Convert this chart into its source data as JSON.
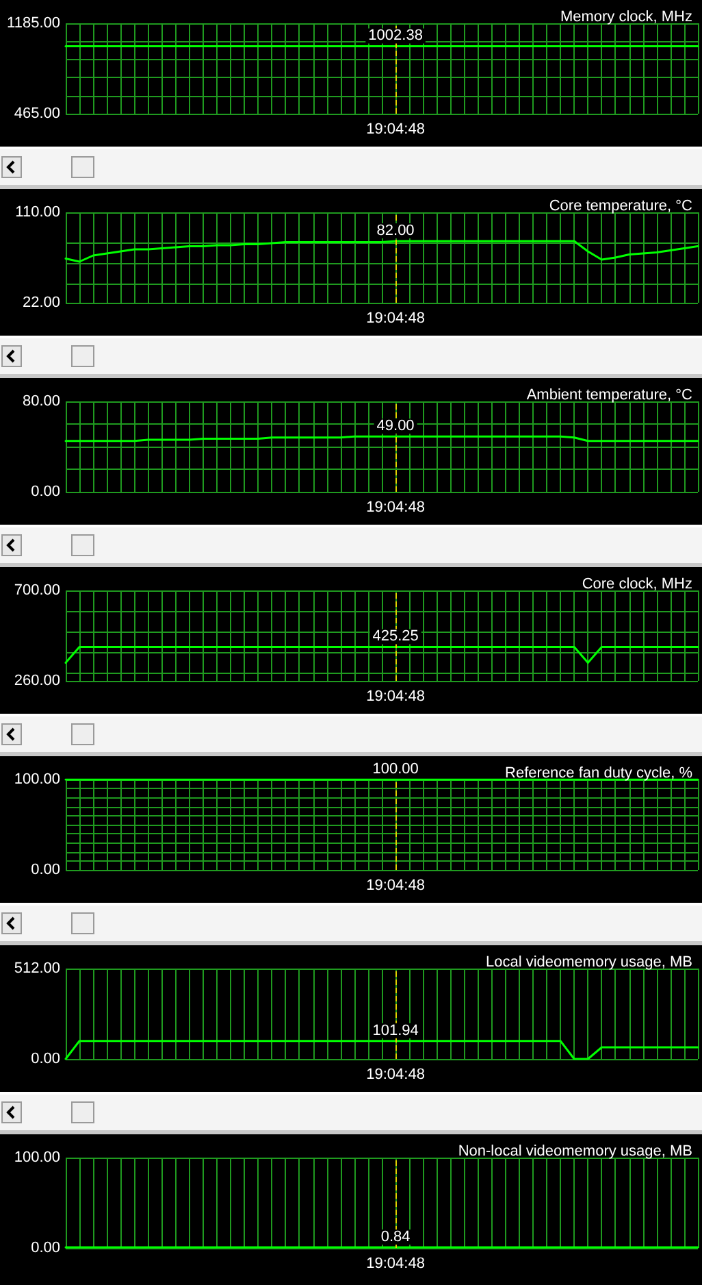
{
  "chart_data": [
    {
      "type": "line",
      "title": "Memory clock, MHz",
      "color": "#00ff00",
      "grid": true,
      "marker": "none",
      "categories": [
        null,
        null,
        null,
        null,
        null,
        null,
        null,
        null,
        null,
        null,
        null,
        null,
        null,
        null,
        null,
        null,
        null,
        null,
        null,
        null,
        null,
        null,
        null,
        null,
        "19:04:48",
        null,
        null,
        null,
        null,
        null,
        null,
        null,
        null,
        null,
        null,
        null,
        null,
        null,
        null,
        null,
        null,
        null,
        null,
        null,
        null,
        null,
        null
      ],
      "values": [
        1002.38,
        1002.38,
        1002.38,
        1002.38,
        1002.38,
        1002.38,
        1002.38,
        1002.38,
        1002.38,
        1002.38,
        1002.38,
        1002.38,
        1002.38,
        1002.38,
        1002.38,
        1002.38,
        1002.38,
        1002.38,
        1002.38,
        1002.38,
        1002.38,
        1002.38,
        1002.38,
        1002.38,
        1002.38,
        1002.38,
        1002.38,
        1002.38,
        1002.38,
        1002.38,
        1002.38,
        1002.38,
        1002.38,
        1002.38,
        1002.38,
        1002.38,
        1002.38,
        1002.38,
        1002.38,
        1002.38,
        1002.38,
        1002.38,
        1002.38,
        1002.38,
        1002.38,
        1002.38,
        1002.38
      ],
      "ylim": [
        465,
        1185
      ],
      "yticks": [
        {
          "value": 465,
          "label": "465.00"
        },
        {
          "value": 609,
          "label": null
        },
        {
          "value": 753,
          "label": null
        },
        {
          "value": 897,
          "label": null
        },
        {
          "value": 1041,
          "label": null
        },
        {
          "value": 1185,
          "label": "1185.00"
        }
      ],
      "ref_lines": [
        {
          "axis": "x",
          "value": "19:04:48",
          "color": "#e0d000",
          "line_style": "dashed"
        }
      ],
      "annotations": [
        {
          "text": "1002.38",
          "x": "19:04:48",
          "y": 1002.38
        }
      ]
    },
    {
      "type": "line",
      "title": "Core temperature, °C",
      "color": "#00ff00",
      "grid": true,
      "marker": "none",
      "categories": [
        null,
        null,
        null,
        null,
        null,
        null,
        null,
        null,
        null,
        null,
        null,
        null,
        null,
        null,
        null,
        null,
        null,
        null,
        null,
        null,
        null,
        null,
        null,
        null,
        "19:04:48",
        null,
        null,
        null,
        null,
        null,
        null,
        null,
        null,
        null,
        null,
        null,
        null,
        null,
        null,
        null,
        null,
        null,
        null,
        null,
        null,
        null,
        null
      ],
      "values": [
        65,
        62,
        68,
        70,
        72,
        74,
        74,
        75,
        76,
        77,
        77,
        78,
        78,
        79,
        79,
        80,
        81,
        81,
        81,
        81,
        81,
        81,
        81,
        81,
        82,
        82,
        82,
        82,
        82,
        82,
        82,
        82,
        82,
        82,
        82,
        82,
        82,
        82,
        72,
        64,
        66,
        69,
        70,
        71,
        73,
        75,
        77
      ],
      "ylim": [
        22,
        110
      ],
      "yticks": [
        {
          "value": 22,
          "label": "22.00"
        },
        {
          "value": 40,
          "label": null
        },
        {
          "value": 60,
          "label": null
        },
        {
          "value": 80,
          "label": null
        },
        {
          "value": 110,
          "label": "110.00"
        }
      ],
      "ref_lines": [
        {
          "axis": "x",
          "value": "19:04:48",
          "color": "#e0d000",
          "line_style": "dashed"
        }
      ],
      "annotations": [
        {
          "text": "82.00",
          "x": "19:04:48",
          "y": 82
        }
      ]
    },
    {
      "type": "line",
      "title": "Ambient temperature, °C",
      "color": "#00ff00",
      "grid": true,
      "marker": "none",
      "categories": [
        null,
        null,
        null,
        null,
        null,
        null,
        null,
        null,
        null,
        null,
        null,
        null,
        null,
        null,
        null,
        null,
        null,
        null,
        null,
        null,
        null,
        null,
        null,
        null,
        "19:04:48",
        null,
        null,
        null,
        null,
        null,
        null,
        null,
        null,
        null,
        null,
        null,
        null,
        null,
        null,
        null,
        null,
        null,
        null,
        null,
        null,
        null,
        null
      ],
      "values": [
        45,
        45,
        45,
        45,
        45,
        45,
        46,
        46,
        46,
        46,
        47,
        47,
        47,
        47,
        47,
        48,
        48,
        48,
        48,
        48,
        48,
        49,
        49,
        49,
        49,
        49,
        49,
        49,
        49,
        49,
        49,
        49,
        49,
        49,
        49,
        49,
        49,
        48,
        45,
        45,
        45,
        45,
        45,
        45,
        45,
        45,
        45
      ],
      "ylim": [
        0,
        80
      ],
      "yticks": [
        {
          "value": 0,
          "label": "0.00"
        },
        {
          "value": 20,
          "label": null
        },
        {
          "value": 40,
          "label": null
        },
        {
          "value": 60,
          "label": null
        },
        {
          "value": 80,
          "label": "80.00"
        }
      ],
      "ref_lines": [
        {
          "axis": "x",
          "value": "19:04:48",
          "color": "#e0d000",
          "line_style": "dashed"
        }
      ],
      "annotations": [
        {
          "text": "49.00",
          "x": "19:04:48",
          "y": 49
        }
      ]
    },
    {
      "type": "line",
      "title": "Core clock, MHz",
      "color": "#00ff00",
      "grid": true,
      "marker": "none",
      "categories": [
        null,
        null,
        null,
        null,
        null,
        null,
        null,
        null,
        null,
        null,
        null,
        null,
        null,
        null,
        null,
        null,
        null,
        null,
        null,
        null,
        null,
        null,
        null,
        null,
        "19:04:48",
        null,
        null,
        null,
        null,
        null,
        null,
        null,
        null,
        null,
        null,
        null,
        null,
        null,
        null,
        null,
        null,
        null,
        null,
        null,
        null,
        null,
        null
      ],
      "values": [
        348,
        425.25,
        425.25,
        425.25,
        425.25,
        425.25,
        425.25,
        425.25,
        425.25,
        425.25,
        425.25,
        425.25,
        425.25,
        425.25,
        425.25,
        425.25,
        425.25,
        425.25,
        425.25,
        425.25,
        425.25,
        425.25,
        425.25,
        425.25,
        425.25,
        425.25,
        425.25,
        425.25,
        425.25,
        425.25,
        425.25,
        425.25,
        425.25,
        425.25,
        425.25,
        425.25,
        425.25,
        425.25,
        348,
        425.25,
        425.25,
        425.25,
        425.25,
        425.25,
        425.25,
        425.25,
        425.25
      ],
      "ylim": [
        260,
        700
      ],
      "yticks": [
        {
          "value": 260,
          "label": "260.00"
        },
        {
          "value": 300,
          "label": null
        },
        {
          "value": 400,
          "label": null
        },
        {
          "value": 500,
          "label": null
        },
        {
          "value": 600,
          "label": null
        },
        {
          "value": 700,
          "label": "700.00"
        }
      ],
      "ref_lines": [
        {
          "axis": "x",
          "value": "19:04:48",
          "color": "#e0d000",
          "line_style": "dashed"
        }
      ],
      "annotations": [
        {
          "text": "425.25",
          "x": "19:04:48",
          "y": 425.25
        }
      ]
    },
    {
      "type": "line",
      "title": "Reference fan duty cycle, %",
      "color": "#00ff00",
      "grid": true,
      "marker": "none",
      "categories": [
        null,
        null,
        null,
        null,
        null,
        null,
        null,
        null,
        null,
        null,
        null,
        null,
        null,
        null,
        null,
        null,
        null,
        null,
        null,
        null,
        null,
        null,
        null,
        null,
        "19:04:48",
        null,
        null,
        null,
        null,
        null,
        null,
        null,
        null,
        null,
        null,
        null,
        null,
        null,
        null,
        null,
        null,
        null,
        null,
        null,
        null,
        null,
        null
      ],
      "values": [
        100,
        100,
        100,
        100,
        100,
        100,
        100,
        100,
        100,
        100,
        100,
        100,
        100,
        100,
        100,
        100,
        100,
        100,
        100,
        100,
        100,
        100,
        100,
        100,
        100,
        100,
        100,
        100,
        100,
        100,
        100,
        100,
        100,
        100,
        100,
        100,
        100,
        100,
        100,
        100,
        100,
        100,
        100,
        100,
        100,
        100,
        100
      ],
      "ylim": [
        0,
        100
      ],
      "yticks": [
        {
          "value": 0,
          "label": "0.00"
        },
        {
          "value": 10,
          "label": null
        },
        {
          "value": 20,
          "label": null
        },
        {
          "value": 30,
          "label": null
        },
        {
          "value": 40,
          "label": null
        },
        {
          "value": 50,
          "label": null
        },
        {
          "value": 60,
          "label": null
        },
        {
          "value": 70,
          "label": null
        },
        {
          "value": 80,
          "label": null
        },
        {
          "value": 90,
          "label": null
        },
        {
          "value": 100,
          "label": "100.00"
        }
      ],
      "ref_lines": [
        {
          "axis": "x",
          "value": "19:04:48",
          "color": "#e0d000",
          "line_style": "dashed"
        }
      ],
      "annotations": [
        {
          "text": "100.00",
          "x": "19:04:48",
          "y": 100
        }
      ]
    },
    {
      "type": "line",
      "title": "Local videomemory usage, MB",
      "color": "#00ff00",
      "grid": true,
      "marker": "none",
      "categories": [
        null,
        null,
        null,
        null,
        null,
        null,
        null,
        null,
        null,
        null,
        null,
        null,
        null,
        null,
        null,
        null,
        null,
        null,
        null,
        null,
        null,
        null,
        null,
        null,
        "19:04:48",
        null,
        null,
        null,
        null,
        null,
        null,
        null,
        null,
        null,
        null,
        null,
        null,
        null,
        null,
        null,
        null,
        null,
        null,
        null,
        null,
        null,
        null
      ],
      "values": [
        0,
        101.94,
        101.94,
        101.94,
        101.94,
        101.94,
        101.94,
        101.94,
        101.94,
        101.94,
        101.94,
        101.94,
        101.94,
        101.94,
        101.94,
        101.94,
        101.94,
        101.94,
        101.94,
        101.94,
        101.94,
        101.94,
        101.94,
        101.94,
        101.94,
        101.94,
        101.94,
        101.94,
        101.94,
        101.94,
        101.94,
        101.94,
        101.94,
        101.94,
        101.94,
        101.94,
        101.94,
        0,
        0,
        66,
        66,
        66,
        66,
        66,
        66,
        66,
        66
      ],
      "ylim": [
        0,
        512
      ],
      "yticks": [
        {
          "value": 0,
          "label": "0.00"
        },
        {
          "value": 512,
          "label": "512.00"
        }
      ],
      "ref_lines": [
        {
          "axis": "x",
          "value": "19:04:48",
          "color": "#e0d000",
          "line_style": "dashed"
        }
      ],
      "annotations": [
        {
          "text": "101.94",
          "x": "19:04:48",
          "y": 101.94
        }
      ]
    },
    {
      "type": "line",
      "title": "Non-local videomemory usage, MB",
      "color": "#00ff00",
      "grid": true,
      "marker": "none",
      "categories": [
        null,
        null,
        null,
        null,
        null,
        null,
        null,
        null,
        null,
        null,
        null,
        null,
        null,
        null,
        null,
        null,
        null,
        null,
        null,
        null,
        null,
        null,
        null,
        null,
        "19:04:48",
        null,
        null,
        null,
        null,
        null,
        null,
        null,
        null,
        null,
        null,
        null,
        null,
        null,
        null,
        null,
        null,
        null,
        null,
        null,
        null,
        null,
        null
      ],
      "values": [
        0.84,
        0.84,
        0.84,
        0.84,
        0.84,
        0.84,
        0.84,
        0.84,
        0.84,
        0.84,
        0.84,
        0.84,
        0.84,
        0.84,
        0.84,
        0.84,
        0.84,
        0.84,
        0.84,
        0.84,
        0.84,
        0.84,
        0.84,
        0.84,
        0.84,
        0.84,
        0.84,
        0.84,
        0.84,
        0.84,
        0.84,
        0.84,
        0.84,
        0.84,
        0.84,
        0.84,
        0.84,
        0.84,
        0.84,
        0.84,
        0.84,
        0.84,
        0.84,
        0.84,
        0.84,
        0.84,
        0.84
      ],
      "ylim": [
        0,
        100
      ],
      "yticks": [
        {
          "value": 0,
          "label": "0.00"
        },
        {
          "value": 100,
          "label": "100.00"
        }
      ],
      "ref_lines": [
        {
          "axis": "x",
          "value": "19:04:48",
          "color": "#e0d000",
          "line_style": "dashed"
        }
      ],
      "annotations": [
        {
          "text": "0.84",
          "x": "19:04:48",
          "y": 0.84
        }
      ]
    }
  ]
}
